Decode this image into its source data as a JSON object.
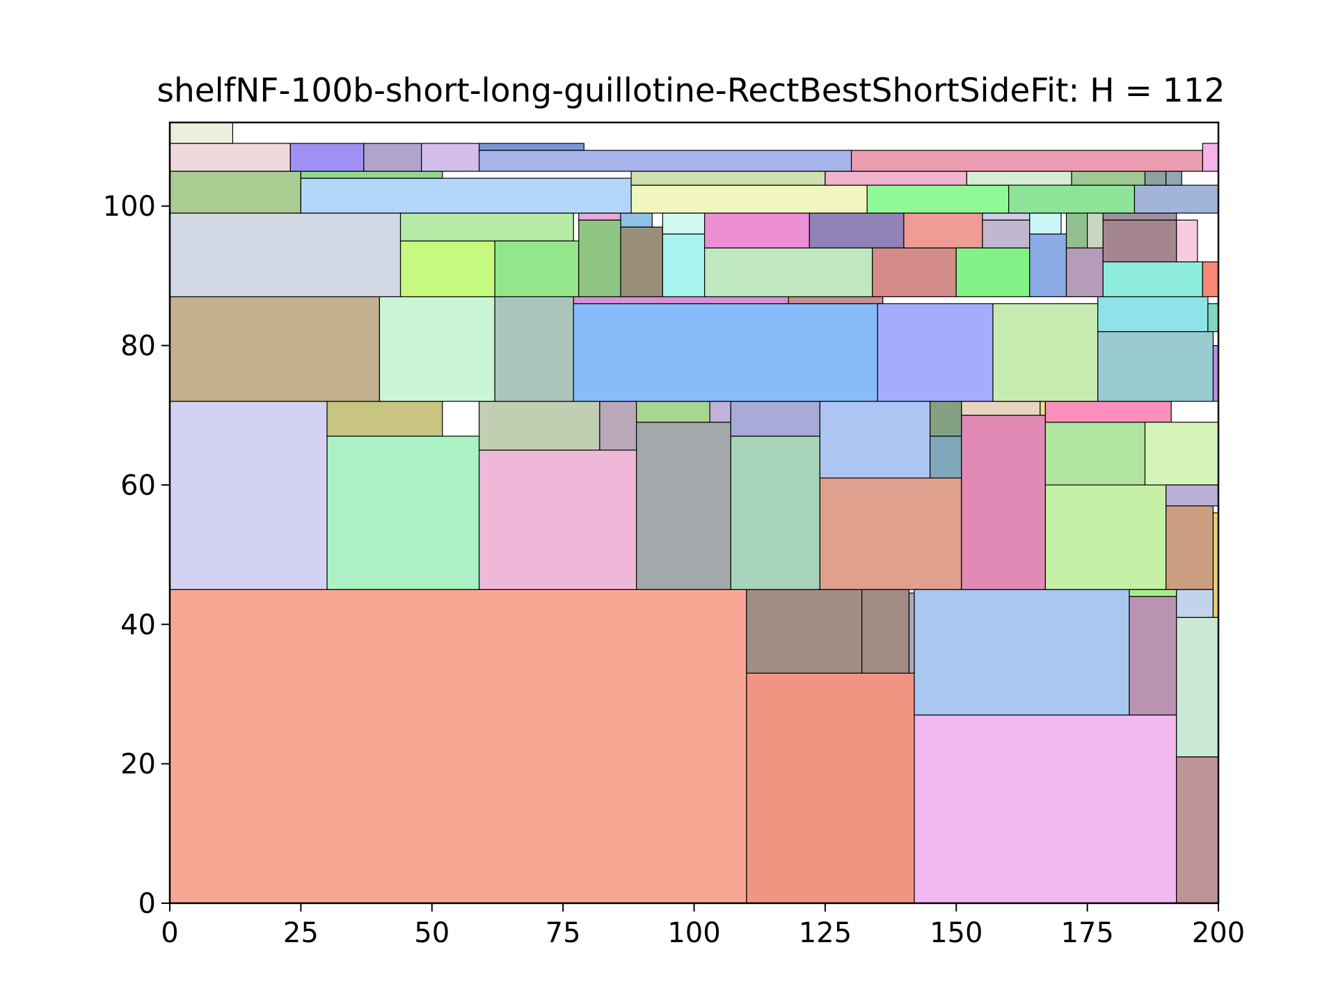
{
  "chart_data": {
    "type": "rectangle-packing",
    "title": "shelfNF-100b-short-long-guillotine-RectBestShortSideFit: H = 112",
    "xlabel": "",
    "ylabel": "",
    "xlim": [
      0,
      200
    ],
    "ylim": [
      0,
      112
    ],
    "xticks": [
      0,
      25,
      50,
      75,
      100,
      125,
      150,
      175,
      200
    ],
    "yticks": [
      0,
      20,
      40,
      60,
      80,
      100
    ],
    "grid": false,
    "rects": [
      {
        "x": 0,
        "y": 0,
        "w": 110,
        "h": 45,
        "color": "#f9a795"
      },
      {
        "x": 110,
        "y": 0,
        "w": 32,
        "h": 33,
        "color": "#f29482"
      },
      {
        "x": 142,
        "y": 0,
        "w": 50,
        "h": 27,
        "color": "#f1b8f1"
      },
      {
        "x": 192,
        "y": 0,
        "w": 8,
        "h": 21,
        "color": "#bf9499"
      },
      {
        "x": 110,
        "y": 33,
        "w": 22,
        "h": 12,
        "color": "#a18d82"
      },
      {
        "x": 132,
        "y": 33,
        "w": 9,
        "h": 12,
        "color": "#a18d82"
      },
      {
        "x": 141,
        "y": 33,
        "w": 1,
        "h": 11.5,
        "color": "#a8a8b8"
      },
      {
        "x": 142,
        "y": 27,
        "w": 41,
        "h": 18,
        "color": "#a8c8f2"
      },
      {
        "x": 183,
        "y": 27,
        "w": 9,
        "h": 17,
        "color": "#bb93b2"
      },
      {
        "x": 183,
        "y": 44,
        "w": 9,
        "h": 1,
        "color": "#a8ec90"
      },
      {
        "x": 192,
        "y": 21,
        "w": 8,
        "h": 20,
        "color": "#cbe8d6"
      },
      {
        "x": 192,
        "y": 41,
        "w": 7,
        "h": 4,
        "color": "#c3d3ec"
      },
      {
        "x": 0,
        "y": 45,
        "w": 30,
        "h": 27,
        "color": "#d4d2f3"
      },
      {
        "x": 30,
        "y": 45,
        "w": 29,
        "h": 22,
        "color": "#aaf2c4"
      },
      {
        "x": 30,
        "y": 67,
        "w": 22,
        "h": 5,
        "color": "#c8c482"
      },
      {
        "x": 59,
        "y": 45,
        "w": 30,
        "h": 20,
        "color": "#efb8d8"
      },
      {
        "x": 59,
        "y": 65,
        "w": 23,
        "h": 7,
        "color": "#c2ceb2"
      },
      {
        "x": 82,
        "y": 65,
        "w": 7,
        "h": 7,
        "color": "#b8a8b8"
      },
      {
        "x": 89,
        "y": 45,
        "w": 18,
        "h": 24,
        "color": "#a3a8aa"
      },
      {
        "x": 89,
        "y": 69,
        "w": 14,
        "h": 3,
        "color": "#a8d494"
      },
      {
        "x": 103,
        "y": 69,
        "w": 4,
        "h": 3,
        "color": "#c0b2d8"
      },
      {
        "x": 107,
        "y": 45,
        "w": 17,
        "h": 22,
        "color": "#a7d4b8"
      },
      {
        "x": 107,
        "y": 67,
        "w": 17,
        "h": 5,
        "color": "#a8aad8"
      },
      {
        "x": 124,
        "y": 45,
        "w": 27,
        "h": 16,
        "color": "#dfa08e"
      },
      {
        "x": 124,
        "y": 61,
        "w": 21,
        "h": 11,
        "color": "#adc5f3"
      },
      {
        "x": 145,
        "y": 61,
        "w": 6,
        "h": 6,
        "color": "#7ea8ba"
      },
      {
        "x": 145,
        "y": 67,
        "w": 6,
        "h": 5,
        "color": "#83a083"
      },
      {
        "x": 151,
        "y": 45,
        "w": 16,
        "h": 25,
        "color": "#e28ab6"
      },
      {
        "x": 151,
        "y": 70,
        "w": 15,
        "h": 2,
        "color": "#e8d4c0"
      },
      {
        "x": 166,
        "y": 70,
        "w": 1,
        "h": 2,
        "color": "#f0e090"
      },
      {
        "x": 167,
        "y": 45,
        "w": 23,
        "h": 15,
        "color": "#c6f0a6"
      },
      {
        "x": 167,
        "y": 60,
        "w": 19,
        "h": 9,
        "color": "#b1e49e"
      },
      {
        "x": 167,
        "y": 69,
        "w": 24,
        "h": 3,
        "color": "#f98fba"
      },
      {
        "x": 186,
        "y": 60,
        "w": 14,
        "h": 9,
        "color": "#d4f3b8"
      },
      {
        "x": 190,
        "y": 45,
        "w": 9,
        "h": 12,
        "color": "#cb9e82"
      },
      {
        "x": 190,
        "y": 57,
        "w": 10,
        "h": 3,
        "color": "#bbb0d6"
      },
      {
        "x": 199,
        "y": 41,
        "w": 1,
        "h": 15,
        "color": "#e8d070"
      },
      {
        "x": 0,
        "y": 72,
        "w": 40,
        "h": 15,
        "color": "#c4b08e"
      },
      {
        "x": 40,
        "y": 72,
        "w": 22,
        "h": 15,
        "color": "#cbf6d6"
      },
      {
        "x": 62,
        "y": 72,
        "w": 15,
        "h": 15,
        "color": "#abc5bd"
      },
      {
        "x": 77,
        "y": 72,
        "w": 58,
        "h": 14,
        "color": "#88bbfa"
      },
      {
        "x": 77,
        "y": 86,
        "w": 41,
        "h": 1,
        "color": "#d890d8"
      },
      {
        "x": 118,
        "y": 86,
        "w": 18,
        "h": 1,
        "color": "#c89090"
      },
      {
        "x": 135,
        "y": 72,
        "w": 22,
        "h": 14,
        "color": "#a3acfd"
      },
      {
        "x": 157,
        "y": 72,
        "w": 20,
        "h": 14,
        "color": "#c7ecb2"
      },
      {
        "x": 177,
        "y": 72,
        "w": 22,
        "h": 10,
        "color": "#99cbd1"
      },
      {
        "x": 177,
        "y": 82,
        "w": 21,
        "h": 5,
        "color": "#90e2ea"
      },
      {
        "x": 198,
        "y": 82,
        "w": 2,
        "h": 4,
        "color": "#80d8c0"
      },
      {
        "x": 199,
        "y": 72,
        "w": 1,
        "h": 8,
        "color": "#b890e0"
      },
      {
        "x": 0,
        "y": 87,
        "w": 44,
        "h": 12,
        "color": "#d2d8e3"
      },
      {
        "x": 44,
        "y": 87,
        "w": 18,
        "h": 8,
        "color": "#c6fa7f"
      },
      {
        "x": 44,
        "y": 95,
        "w": 33,
        "h": 4,
        "color": "#b6eaa6"
      },
      {
        "x": 62,
        "y": 87,
        "w": 16,
        "h": 8,
        "color": "#93e68a"
      },
      {
        "x": 78,
        "y": 87,
        "w": 8,
        "h": 11,
        "color": "#90c684"
      },
      {
        "x": 78,
        "y": 98,
        "w": 8,
        "h": 1,
        "color": "#e8a8d8"
      },
      {
        "x": 86,
        "y": 87,
        "w": 8,
        "h": 10,
        "color": "#9a907a"
      },
      {
        "x": 86,
        "y": 97,
        "w": 6,
        "h": 2,
        "color": "#8ec0e8"
      },
      {
        "x": 94,
        "y": 87,
        "w": 8,
        "h": 9,
        "color": "#a7f4ef"
      },
      {
        "x": 94,
        "y": 96,
        "w": 8,
        "h": 3,
        "color": "#d0f8ee"
      },
      {
        "x": 102,
        "y": 87,
        "w": 32,
        "h": 7,
        "color": "#bfe8c0"
      },
      {
        "x": 102,
        "y": 94,
        "w": 20,
        "h": 5,
        "color": "#ec8fd4"
      },
      {
        "x": 122,
        "y": 94,
        "w": 18,
        "h": 5,
        "color": "#9183b7"
      },
      {
        "x": 134,
        "y": 87,
        "w": 16,
        "h": 7,
        "color": "#d38c88"
      },
      {
        "x": 140,
        "y": 94,
        "w": 15,
        "h": 5,
        "color": "#f09b94"
      },
      {
        "x": 150,
        "y": 87,
        "w": 14,
        "h": 7,
        "color": "#82f286"
      },
      {
        "x": 155,
        "y": 94,
        "w": 9,
        "h": 4,
        "color": "#c1b8cf"
      },
      {
        "x": 155,
        "y": 98,
        "w": 9,
        "h": 1,
        "color": "#d4c8e8"
      },
      {
        "x": 164,
        "y": 87,
        "w": 7,
        "h": 9,
        "color": "#8cace7"
      },
      {
        "x": 164,
        "y": 96,
        "w": 6,
        "h": 3,
        "color": "#cbf6f6"
      },
      {
        "x": 171,
        "y": 87,
        "w": 7,
        "h": 7,
        "color": "#b59cb8"
      },
      {
        "x": 171,
        "y": 94,
        "w": 4,
        "h": 5,
        "color": "#90c090"
      },
      {
        "x": 175,
        "y": 94,
        "w": 3,
        "h": 5,
        "color": "#c8d8c0"
      },
      {
        "x": 178,
        "y": 87,
        "w": 19,
        "h": 5,
        "color": "#8eecdc"
      },
      {
        "x": 178,
        "y": 92,
        "w": 14,
        "h": 6,
        "color": "#a5868f"
      },
      {
        "x": 178,
        "y": 98,
        "w": 14,
        "h": 1,
        "color": "#a090a0"
      },
      {
        "x": 192,
        "y": 92,
        "w": 4,
        "h": 6,
        "color": "#f7cbe2"
      },
      {
        "x": 197,
        "y": 87,
        "w": 3,
        "h": 5,
        "color": "#f98878"
      },
      {
        "x": 0,
        "y": 99,
        "w": 25,
        "h": 6,
        "color": "#aacb92"
      },
      {
        "x": 25,
        "y": 99,
        "w": 63,
        "h": 5,
        "color": "#b3d7f9"
      },
      {
        "x": 25,
        "y": 104,
        "w": 27,
        "h": 1,
        "color": "#90d890"
      },
      {
        "x": 88,
        "y": 99,
        "w": 45,
        "h": 4,
        "color": "#f1f6c0"
      },
      {
        "x": 88,
        "y": 103,
        "w": 37,
        "h": 2,
        "color": "#cee0ae"
      },
      {
        "x": 125,
        "y": 103,
        "w": 27,
        "h": 2,
        "color": "#f0b4cc"
      },
      {
        "x": 133,
        "y": 99,
        "w": 27,
        "h": 4,
        "color": "#90f897"
      },
      {
        "x": 152,
        "y": 103,
        "w": 20,
        "h": 2,
        "color": "#d4ecd4"
      },
      {
        "x": 160,
        "y": 99,
        "w": 24,
        "h": 4,
        "color": "#8ee498"
      },
      {
        "x": 172,
        "y": 103,
        "w": 14,
        "h": 2,
        "color": "#9ec894"
      },
      {
        "x": 184,
        "y": 99,
        "w": 16,
        "h": 4,
        "color": "#a3b4db"
      },
      {
        "x": 186,
        "y": 103,
        "w": 4,
        "h": 2,
        "color": "#8ea0a0"
      },
      {
        "x": 190,
        "y": 103,
        "w": 3,
        "h": 2,
        "color": "#90a8b0"
      },
      {
        "x": 0,
        "y": 105,
        "w": 23,
        "h": 4,
        "color": "#f0d8dc"
      },
      {
        "x": 23,
        "y": 105,
        "w": 14,
        "h": 4,
        "color": "#a090f4"
      },
      {
        "x": 37,
        "y": 105,
        "w": 11,
        "h": 4,
        "color": "#b0a4cc"
      },
      {
        "x": 48,
        "y": 105,
        "w": 11,
        "h": 4,
        "color": "#d2bdec"
      },
      {
        "x": 59,
        "y": 105,
        "w": 71,
        "h": 3,
        "color": "#a6b4e9"
      },
      {
        "x": 59,
        "y": 108,
        "w": 20,
        "h": 1,
        "color": "#7a96d8"
      },
      {
        "x": 130,
        "y": 105,
        "w": 67,
        "h": 3,
        "color": "#ec9cb0"
      },
      {
        "x": 197,
        "y": 105,
        "w": 3,
        "h": 4,
        "color": "#f4b4e8"
      },
      {
        "x": 0,
        "y": 109,
        "w": 12,
        "h": 3,
        "color": "#ecefdc"
      }
    ]
  }
}
